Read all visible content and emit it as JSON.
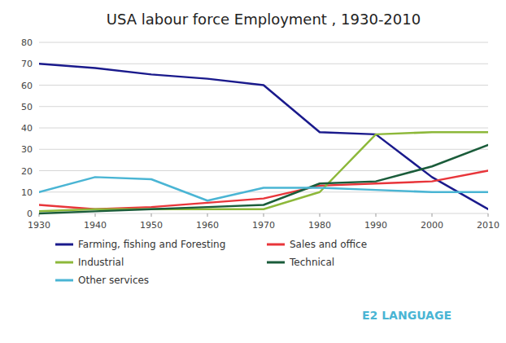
{
  "chart_data": {
    "type": "line",
    "title": "USA labour force Employment , 1930-2010",
    "x": [
      1930,
      1940,
      1950,
      1960,
      1970,
      1980,
      1990,
      2000,
      2010
    ],
    "series": [
      {
        "name": "Farming, fishing and Foresting",
        "color": "#1a1a8c",
        "values": [
          70,
          68,
          65,
          63,
          60,
          38,
          37,
          17,
          2
        ]
      },
      {
        "name": "Sales and office",
        "color": "#e8353a",
        "values": [
          4,
          2,
          3,
          5,
          7,
          13,
          14,
          15,
          20
        ]
      },
      {
        "name": "Industrial",
        "color": "#8db83a",
        "values": [
          1,
          2,
          2,
          2,
          2,
          10,
          37,
          38,
          38
        ]
      },
      {
        "name": "Technical",
        "color": "#1a5c3a",
        "values": [
          0,
          1,
          2,
          3,
          4,
          14,
          15,
          22,
          32
        ]
      },
      {
        "name": "Other services",
        "color": "#4ab5d4",
        "values": [
          10,
          17,
          16,
          6,
          12,
          12,
          11,
          10,
          10
        ]
      }
    ],
    "xlim": [
      1930,
      2010
    ],
    "ylim": [
      0,
      80
    ],
    "xticks": [
      1930,
      1940,
      1950,
      1960,
      1970,
      1980,
      1990,
      2000,
      2010
    ],
    "yticks": [
      0,
      10,
      20,
      30,
      40,
      50,
      60,
      70,
      80
    ],
    "grid": "y",
    "legend": "bottom",
    "annotations": [
      {
        "text": "E2 LANGUAGE",
        "color": "#4ab5d4"
      }
    ]
  }
}
